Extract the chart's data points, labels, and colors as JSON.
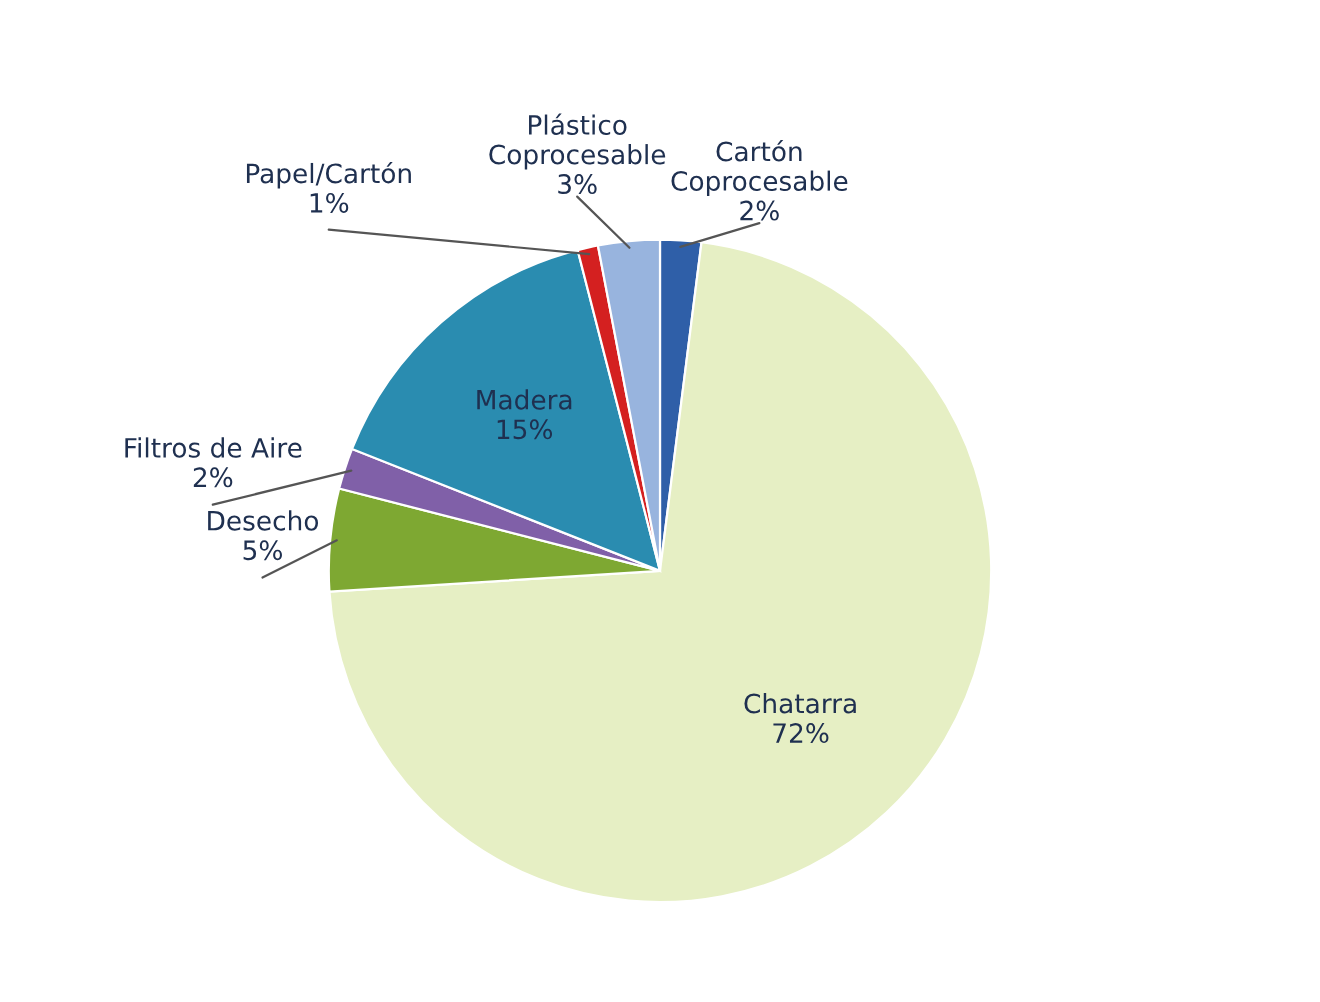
{
  "chart_data": {
    "type": "pie",
    "categories": [
      "Cartón\nCoprocesable",
      "Chatarra",
      "Desecho",
      "Filtros de Aire",
      "Madera",
      "Papel/Cartón",
      "Plástico\nCoprocesable"
    ],
    "values": [
      2,
      72,
      5,
      2,
      15,
      1,
      3
    ],
    "colors": [
      "#2f5fa8",
      "#e6efc4",
      "#7ea832",
      "#8060a8",
      "#2a8cb0",
      "#d42020",
      "#98b4de"
    ],
    "value_labels": [
      "2%",
      "72%",
      "5%",
      "2%",
      "15%",
      "1%",
      "3%"
    ],
    "legend": false
  }
}
